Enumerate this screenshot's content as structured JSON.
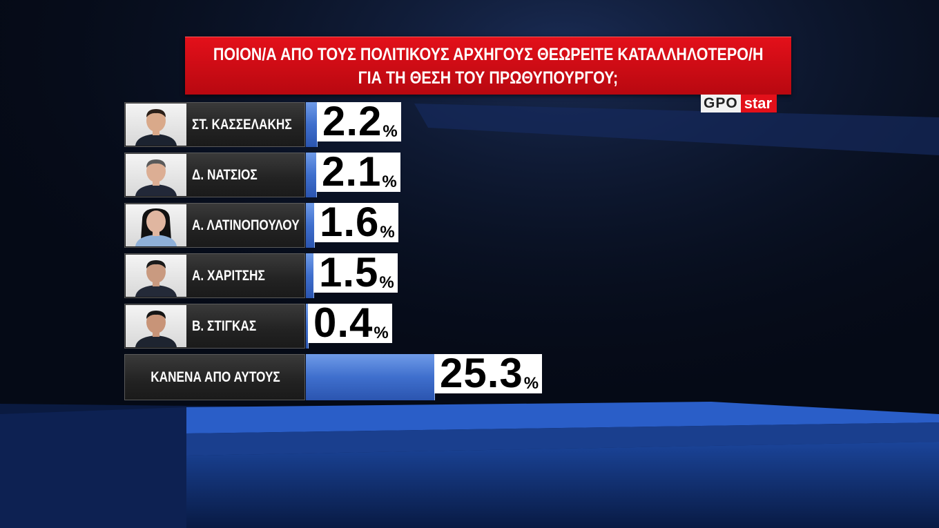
{
  "title": {
    "line1": "ΠΟΙΟΝ/Α ΑΠΟ ΤΟΥΣ ΠΟΛΙΤΙΚΟΥΣ ΑΡΧΗΓΟΥΣ ΘΕΩΡΕΙΤΕ ΚΑΤΑΛΛΗΛΟΤΕΡΟ/Η",
    "line2": "ΓΙΑ ΤΗ ΘΕΣΗ ΤΟΥ ΠΡΩΘΥΠΟΥΡΓΟΥ;"
  },
  "logo": {
    "part1": "GPO",
    "part2": "star"
  },
  "colors": {
    "title_red": "#e3101a",
    "bar_blue": "#3f6fcd",
    "panel_dark": "#222222"
  },
  "chart_data": {
    "type": "bar",
    "orientation": "horizontal",
    "title": "ΠΟΙΟΝ/Α ΑΠΟ ΤΟΥΣ ΠΟΛΙΤΙΚΟΥΣ ΑΡΧΗΓΟΥΣ ΘΕΩΡΕΙΤΕ ΚΑΤΑΛΛΗΛΟΤΕΡΟ/Η ΓΙΑ ΤΗ ΘΕΣΗ ΤΟΥ ΠΡΩΘΥΠΟΥΡΓΟΥ;",
    "unit": "%",
    "categories": [
      "ΣΤ. ΚΑΣΣΕΛΑΚΗΣ",
      "Δ. ΝΑΤΣΙΟΣ",
      "Α. ΛΑΤΙΝΟΠΟΥΛΟΥ",
      "Α. ΧΑΡΙΤΣΗΣ",
      "Β. ΣΤΙΓΚΑΣ",
      "ΚΑΝΕΝΑ ΑΠΟ ΑΥΤΟΥΣ"
    ],
    "values": [
      2.2,
      2.1,
      1.6,
      1.5,
      0.4,
      25.3
    ],
    "labels": [
      "2.2",
      "2.1",
      "1.6",
      "1.5",
      "0.4",
      "25.3"
    ],
    "has_photo": [
      true,
      true,
      true,
      true,
      true,
      false
    ],
    "photo_icons": [
      "person-photo",
      "person-photo",
      "person-photo",
      "person-photo",
      "person-photo",
      ""
    ]
  }
}
